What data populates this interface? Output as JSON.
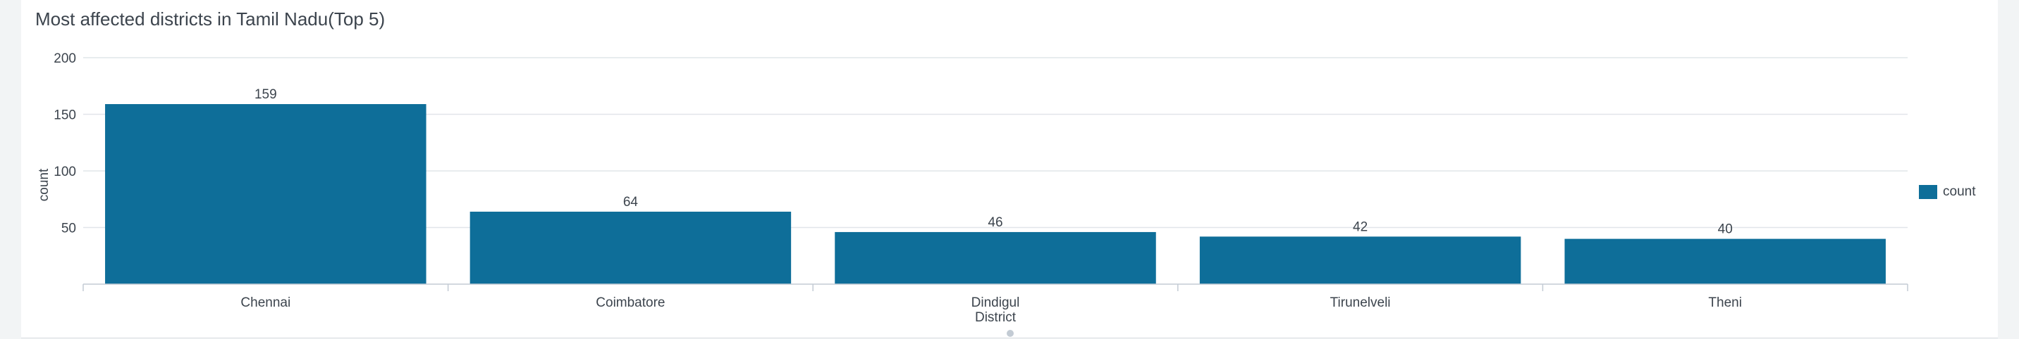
{
  "panel": {
    "title": "Most affected districts in Tamil Nadu(Top 5)"
  },
  "chart_data": {
    "type": "bar",
    "title": "Most affected districts in Tamil Nadu(Top 5)",
    "xlabel": "District",
    "ylabel": "count",
    "categories": [
      "Chennai",
      "Coimbatore",
      "Dindigul",
      "Tirunelveli",
      "Theni"
    ],
    "series": [
      {
        "name": "count",
        "values": [
          159,
          64,
          46,
          42,
          40
        ]
      }
    ],
    "ylim": [
      0,
      200
    ],
    "yticks": [
      50,
      100,
      150,
      200
    ],
    "grid": true,
    "data_labels": true,
    "legend": "right",
    "bar_color": "#0e6e99"
  }
}
